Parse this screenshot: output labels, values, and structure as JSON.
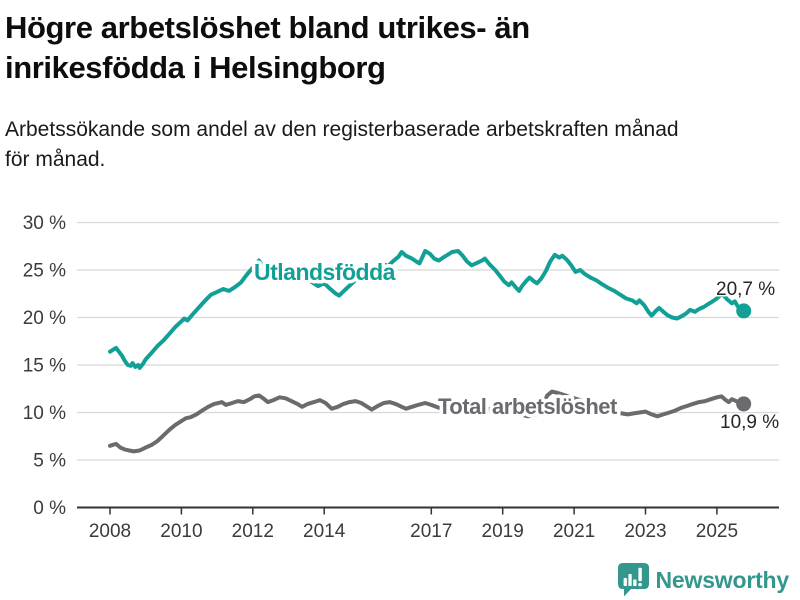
{
  "header": {
    "title_line1": "Högre arbetslöshet bland utrikes- än",
    "title_line2": "inrikesfödda i Helsingborg",
    "subtitle_line1": "Arbetssökande som andel av den registerbaserade arbetskraften månad",
    "subtitle_line2": "för månad."
  },
  "footer": {
    "brand": "Newsworthy",
    "icon": "bar-chart-speech-bubble-icon"
  },
  "colors": {
    "foreign_line": "#12A096",
    "total_line": "#6A6A6F",
    "grid": "#D8D8D8",
    "axis": "#333333",
    "tick_text": "#3B3B3B",
    "value_text": "#262626",
    "title_text": "#0D0D0D",
    "brand": "#33978E"
  },
  "chart_data": {
    "type": "line",
    "title": "Högre arbetslöshet bland utrikes- än inrikesfödda i Helsingborg",
    "subtitle": "Arbetssökande som andel av den registerbaserade arbetskraften månad för månad.",
    "xlabel": "",
    "ylabel": "",
    "grid": true,
    "legend_position": "inline-labels",
    "x_axis": {
      "tick_labels": [
        "2008",
        "2010",
        "2012",
        "2014",
        "2017",
        "2019",
        "2021",
        "2023",
        "2025"
      ],
      "tick_values": [
        2008,
        2010,
        2012,
        2014,
        2017,
        2019,
        2021,
        2023,
        2025
      ],
      "range": [
        2007.9,
        2026.8
      ]
    },
    "y_axis": {
      "tick_labels": [
        "0 %",
        "5 %",
        "10 %",
        "15 %",
        "20 %",
        "25 %",
        "30 %"
      ],
      "tick_values": [
        0,
        5,
        10,
        15,
        20,
        25,
        30
      ],
      "range": [
        0,
        30
      ],
      "unit": "%"
    },
    "series": [
      {
        "name": "Utlandsfödda",
        "color": "#12A096",
        "end_label": "20,7 %",
        "end_value": 20.7,
        "points": [
          [
            2008.0,
            16.4
          ],
          [
            2008.08,
            16.6
          ],
          [
            2008.17,
            16.8
          ],
          [
            2008.25,
            16.4
          ],
          [
            2008.33,
            16.0
          ],
          [
            2008.42,
            15.4
          ],
          [
            2008.5,
            15.0
          ],
          [
            2008.58,
            14.9
          ],
          [
            2008.63,
            15.2
          ],
          [
            2008.71,
            14.8
          ],
          [
            2008.79,
            15.0
          ],
          [
            2008.83,
            14.7
          ],
          [
            2008.92,
            15.1
          ],
          [
            2009.0,
            15.6
          ],
          [
            2009.17,
            16.3
          ],
          [
            2009.33,
            17.0
          ],
          [
            2009.5,
            17.6
          ],
          [
            2009.67,
            18.3
          ],
          [
            2009.83,
            19.0
          ],
          [
            2010.0,
            19.6
          ],
          [
            2010.08,
            19.9
          ],
          [
            2010.17,
            19.7
          ],
          [
            2010.33,
            20.4
          ],
          [
            2010.5,
            21.1
          ],
          [
            2010.67,
            21.8
          ],
          [
            2010.83,
            22.4
          ],
          [
            2011.0,
            22.7
          ],
          [
            2011.17,
            23.0
          ],
          [
            2011.33,
            22.8
          ],
          [
            2011.5,
            23.2
          ],
          [
            2011.67,
            23.7
          ],
          [
            2011.83,
            24.5
          ],
          [
            2011.92,
            24.9
          ],
          [
            2012.04,
            25.4
          ],
          [
            2012.17,
            26.0
          ],
          [
            2012.25,
            25.6
          ],
          [
            2012.38,
            25.2
          ],
          [
            2012.5,
            25.5
          ],
          [
            2012.63,
            25.1
          ],
          [
            2012.75,
            24.8
          ],
          [
            2012.88,
            25.0
          ],
          [
            2013.0,
            24.7
          ],
          [
            2013.17,
            24.3
          ],
          [
            2013.33,
            23.8
          ],
          [
            2013.5,
            24.1
          ],
          [
            2013.67,
            23.7
          ],
          [
            2013.83,
            23.3
          ],
          [
            2014.0,
            23.6
          ],
          [
            2014.17,
            23.0
          ],
          [
            2014.33,
            22.5
          ],
          [
            2014.42,
            22.3
          ],
          [
            2014.58,
            22.9
          ],
          [
            2014.75,
            23.5
          ],
          [
            2014.92,
            24.1
          ],
          [
            2015.08,
            24.6
          ],
          [
            2015.25,
            25.0
          ],
          [
            2015.42,
            25.4
          ],
          [
            2015.5,
            25.2
          ],
          [
            2015.67,
            25.6
          ],
          [
            2015.79,
            25.4
          ],
          [
            2015.92,
            25.9
          ],
          [
            2016.08,
            26.4
          ],
          [
            2016.17,
            26.9
          ],
          [
            2016.29,
            26.5
          ],
          [
            2016.46,
            26.2
          ],
          [
            2016.58,
            25.9
          ],
          [
            2016.67,
            25.7
          ],
          [
            2016.83,
            27.0
          ],
          [
            2016.96,
            26.7
          ],
          [
            2017.08,
            26.2
          ],
          [
            2017.21,
            26.0
          ],
          [
            2017.33,
            26.3
          ],
          [
            2017.46,
            26.6
          ],
          [
            2017.58,
            26.9
          ],
          [
            2017.75,
            27.0
          ],
          [
            2017.88,
            26.5
          ],
          [
            2018.0,
            25.9
          ],
          [
            2018.13,
            25.5
          ],
          [
            2018.25,
            25.7
          ],
          [
            2018.42,
            26.0
          ],
          [
            2018.5,
            26.2
          ],
          [
            2018.63,
            25.6
          ],
          [
            2018.79,
            25.0
          ],
          [
            2018.92,
            24.4
          ],
          [
            2019.04,
            23.8
          ],
          [
            2019.17,
            23.4
          ],
          [
            2019.25,
            23.7
          ],
          [
            2019.38,
            23.1
          ],
          [
            2019.46,
            22.8
          ],
          [
            2019.54,
            23.3
          ],
          [
            2019.67,
            23.9
          ],
          [
            2019.75,
            24.2
          ],
          [
            2019.88,
            23.8
          ],
          [
            2019.96,
            23.6
          ],
          [
            2020.08,
            24.1
          ],
          [
            2020.21,
            24.9
          ],
          [
            2020.33,
            25.9
          ],
          [
            2020.46,
            26.6
          ],
          [
            2020.58,
            26.3
          ],
          [
            2020.67,
            26.5
          ],
          [
            2020.79,
            26.1
          ],
          [
            2020.92,
            25.5
          ],
          [
            2021.04,
            24.8
          ],
          [
            2021.17,
            25.0
          ],
          [
            2021.29,
            24.6
          ],
          [
            2021.46,
            24.2
          ],
          [
            2021.63,
            23.9
          ],
          [
            2021.79,
            23.5
          ],
          [
            2021.96,
            23.1
          ],
          [
            2022.13,
            22.8
          ],
          [
            2022.29,
            22.4
          ],
          [
            2022.46,
            22.0
          ],
          [
            2022.63,
            21.8
          ],
          [
            2022.75,
            21.5
          ],
          [
            2022.83,
            21.8
          ],
          [
            2022.96,
            21.3
          ],
          [
            2023.08,
            20.6
          ],
          [
            2023.17,
            20.2
          ],
          [
            2023.29,
            20.7
          ],
          [
            2023.38,
            21.0
          ],
          [
            2023.5,
            20.6
          ],
          [
            2023.63,
            20.2
          ],
          [
            2023.75,
            20.0
          ],
          [
            2023.88,
            19.9
          ],
          [
            2024.0,
            20.1
          ],
          [
            2024.13,
            20.4
          ],
          [
            2024.25,
            20.8
          ],
          [
            2024.38,
            20.6
          ],
          [
            2024.5,
            20.9
          ],
          [
            2024.63,
            21.1
          ],
          [
            2024.75,
            21.4
          ],
          [
            2024.88,
            21.7
          ],
          [
            2025.0,
            22.0
          ],
          [
            2025.08,
            22.3
          ],
          [
            2025.17,
            22.4
          ],
          [
            2025.29,
            21.9
          ],
          [
            2025.42,
            21.5
          ],
          [
            2025.5,
            21.7
          ],
          [
            2025.58,
            21.2
          ],
          [
            2025.67,
            20.9
          ],
          [
            2025.75,
            20.7
          ]
        ]
      },
      {
        "name": "Total arbetslöshet",
        "color": "#6A6A6F",
        "end_label": "10,9 %",
        "end_value": 10.9,
        "points": [
          [
            2008.0,
            6.5
          ],
          [
            2008.08,
            6.6
          ],
          [
            2008.17,
            6.7
          ],
          [
            2008.29,
            6.3
          ],
          [
            2008.42,
            6.1
          ],
          [
            2008.54,
            6.0
          ],
          [
            2008.67,
            5.9
          ],
          [
            2008.83,
            6.0
          ],
          [
            2009.0,
            6.3
          ],
          [
            2009.17,
            6.6
          ],
          [
            2009.33,
            7.0
          ],
          [
            2009.5,
            7.6
          ],
          [
            2009.67,
            8.2
          ],
          [
            2009.83,
            8.7
          ],
          [
            2010.0,
            9.1
          ],
          [
            2010.13,
            9.4
          ],
          [
            2010.25,
            9.5
          ],
          [
            2010.42,
            9.8
          ],
          [
            2010.58,
            10.2
          ],
          [
            2010.75,
            10.6
          ],
          [
            2010.92,
            10.9
          ],
          [
            2011.04,
            11.0
          ],
          [
            2011.13,
            11.1
          ],
          [
            2011.25,
            10.8
          ],
          [
            2011.42,
            11.0
          ],
          [
            2011.58,
            11.2
          ],
          [
            2011.75,
            11.1
          ],
          [
            2011.92,
            11.4
          ],
          [
            2012.04,
            11.7
          ],
          [
            2012.17,
            11.8
          ],
          [
            2012.29,
            11.5
          ],
          [
            2012.42,
            11.1
          ],
          [
            2012.58,
            11.3
          ],
          [
            2012.75,
            11.6
          ],
          [
            2012.92,
            11.5
          ],
          [
            2013.08,
            11.2
          ],
          [
            2013.25,
            10.9
          ],
          [
            2013.38,
            10.6
          ],
          [
            2013.54,
            10.9
          ],
          [
            2013.71,
            11.1
          ],
          [
            2013.88,
            11.3
          ],
          [
            2014.04,
            11.0
          ],
          [
            2014.21,
            10.4
          ],
          [
            2014.38,
            10.6
          ],
          [
            2014.54,
            10.9
          ],
          [
            2014.71,
            11.1
          ],
          [
            2014.88,
            11.2
          ],
          [
            2015.04,
            11.0
          ],
          [
            2015.21,
            10.6
          ],
          [
            2015.33,
            10.3
          ],
          [
            2015.5,
            10.7
          ],
          [
            2015.67,
            11.0
          ],
          [
            2015.83,
            11.1
          ],
          [
            2016.0,
            10.9
          ],
          [
            2016.17,
            10.6
          ],
          [
            2016.29,
            10.4
          ],
          [
            2016.46,
            10.6
          ],
          [
            2016.63,
            10.8
          ],
          [
            2016.83,
            11.0
          ],
          [
            2017.0,
            10.8
          ],
          [
            2017.21,
            10.5
          ],
          [
            2017.42,
            10.7
          ],
          [
            2017.63,
            10.6
          ],
          [
            2017.83,
            10.8
          ],
          [
            2018.04,
            10.6
          ],
          [
            2018.25,
            10.4
          ],
          [
            2018.46,
            10.5
          ],
          [
            2018.67,
            10.3
          ],
          [
            2018.88,
            10.2
          ],
          [
            2019.08,
            10.0
          ],
          [
            2019.29,
            9.9
          ],
          [
            2019.5,
            9.8
          ],
          [
            2019.71,
            9.6
          ],
          [
            2019.92,
            9.8
          ],
          [
            2020.08,
            10.5
          ],
          [
            2020.25,
            11.8
          ],
          [
            2020.38,
            12.2
          ],
          [
            2020.5,
            12.1
          ],
          [
            2020.67,
            11.9
          ],
          [
            2020.83,
            11.7
          ],
          [
            2021.0,
            11.5
          ],
          [
            2021.17,
            11.3
          ],
          [
            2021.33,
            11.1
          ],
          [
            2021.5,
            10.9
          ],
          [
            2021.67,
            10.7
          ],
          [
            2021.83,
            10.4
          ],
          [
            2022.0,
            10.2
          ],
          [
            2022.17,
            10.0
          ],
          [
            2022.33,
            9.9
          ],
          [
            2022.5,
            9.8
          ],
          [
            2022.67,
            9.9
          ],
          [
            2022.83,
            10.0
          ],
          [
            2023.0,
            10.1
          ],
          [
            2023.17,
            9.8
          ],
          [
            2023.33,
            9.6
          ],
          [
            2023.5,
            9.8
          ],
          [
            2023.67,
            10.0
          ],
          [
            2023.83,
            10.2
          ],
          [
            2024.0,
            10.5
          ],
          [
            2024.17,
            10.7
          ],
          [
            2024.33,
            10.9
          ],
          [
            2024.5,
            11.1
          ],
          [
            2024.67,
            11.2
          ],
          [
            2024.83,
            11.4
          ],
          [
            2025.0,
            11.6
          ],
          [
            2025.13,
            11.7
          ],
          [
            2025.25,
            11.3
          ],
          [
            2025.33,
            11.1
          ],
          [
            2025.42,
            11.4
          ],
          [
            2025.54,
            11.2
          ],
          [
            2025.63,
            11.0
          ],
          [
            2025.75,
            10.9
          ]
        ]
      }
    ]
  }
}
